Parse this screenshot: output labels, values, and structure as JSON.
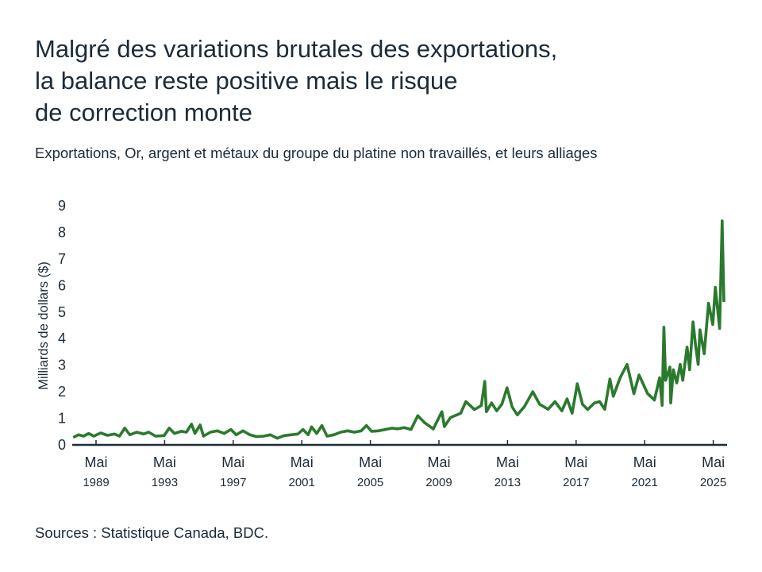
{
  "title_lines": [
    "Malgré des variations brutales des exportations,",
    "la balance reste positive mais le risque",
    "de correction monte"
  ],
  "subtitle": "Exportations, Or, argent et métaux du groupe du platine non travaillés, et leurs alliages",
  "source": "Sources : Statistique Canada, BDC.",
  "colors": {
    "line": "#2a7a2e",
    "text": "#1c2b39",
    "axis": "#1c2b39"
  },
  "chart_data": {
    "type": "line",
    "title": "Malgré des variations brutales des exportations, la balance reste positive mais le risque de correction monte",
    "ylabel": "Milliards de dollars ($)",
    "xlabel": "",
    "ylim": [
      0,
      9
    ],
    "xlim": [
      1987.9,
      2026.2
    ],
    "yticks": [
      "0",
      "1",
      "2",
      "3",
      "4",
      "5",
      "6",
      "7",
      "8",
      "9"
    ],
    "xticks": [
      {
        "year": 1989.33,
        "month": "Mai",
        "label": "1989"
      },
      {
        "year": 1993.33,
        "month": "Mai",
        "label": "1993"
      },
      {
        "year": 1997.33,
        "month": "Mai",
        "label": "1997"
      },
      {
        "year": 2001.33,
        "month": "Mai",
        "label": "2001"
      },
      {
        "year": 2005.33,
        "month": "Mai",
        "label": "2005"
      },
      {
        "year": 2009.33,
        "month": "Mai",
        "label": "2009"
      },
      {
        "year": 2013.33,
        "month": "Mai",
        "label": "2013"
      },
      {
        "year": 2017.33,
        "month": "Mai",
        "label": "2017"
      },
      {
        "year": 2021.33,
        "month": "Mai",
        "label": "2021"
      },
      {
        "year": 2025.33,
        "month": "Mai",
        "label": "2025"
      }
    ],
    "grid": false,
    "series": [
      {
        "name": "Exportations",
        "x": [
          1988.0,
          1988.3,
          1988.6,
          1988.9,
          1989.2,
          1989.6,
          1990.0,
          1990.4,
          1990.7,
          1991.0,
          1991.3,
          1991.7,
          1992.1,
          1992.4,
          1992.8,
          1993.3,
          1993.6,
          1993.9,
          1994.3,
          1994.6,
          1994.9,
          1995.1,
          1995.4,
          1995.6,
          1996.0,
          1996.4,
          1996.8,
          1997.2,
          1997.5,
          1997.9,
          1998.3,
          1998.7,
          1999.1,
          1999.5,
          1999.9,
          2000.3,
          2000.7,
          2001.1,
          2001.4,
          2001.7,
          2001.9,
          2002.2,
          2002.5,
          2002.8,
          2003.2,
          2003.6,
          2004.0,
          2004.4,
          2004.8,
          2005.1,
          2005.4,
          2005.8,
          2006.2,
          2006.6,
          2006.9,
          2007.3,
          2007.7,
          2008.1,
          2008.5,
          2009.0,
          2009.5,
          2009.65,
          2010.0,
          2010.6,
          2010.9,
          2011.4,
          2011.8,
          2012.0,
          2012.1,
          2012.4,
          2012.7,
          2013.0,
          2013.3,
          2013.6,
          2013.9,
          2014.3,
          2014.8,
          2015.2,
          2015.7,
          2016.1,
          2016.5,
          2016.8,
          2017.1,
          2017.4,
          2017.7,
          2018.0,
          2018.4,
          2018.7,
          2019.0,
          2019.3,
          2019.5,
          2019.9,
          2020.3,
          2020.7,
          2021.0,
          2021.5,
          2021.9,
          2022.2,
          2022.35,
          2022.45,
          2022.55,
          2022.8,
          2022.85,
          2023.0,
          2023.2,
          2023.4,
          2023.55,
          2023.8,
          2023.95,
          2024.15,
          2024.3,
          2024.45,
          2024.55,
          2024.8,
          2025.05,
          2025.3,
          2025.45,
          2025.7,
          2025.85,
          2025.95
        ],
        "values": [
          0.25,
          0.35,
          0.3,
          0.4,
          0.3,
          0.42,
          0.33,
          0.38,
          0.3,
          0.6,
          0.35,
          0.45,
          0.38,
          0.45,
          0.3,
          0.32,
          0.6,
          0.4,
          0.48,
          0.45,
          0.75,
          0.4,
          0.72,
          0.3,
          0.45,
          0.5,
          0.4,
          0.55,
          0.35,
          0.5,
          0.35,
          0.28,
          0.3,
          0.35,
          0.22,
          0.32,
          0.35,
          0.38,
          0.55,
          0.35,
          0.65,
          0.4,
          0.7,
          0.3,
          0.35,
          0.45,
          0.5,
          0.45,
          0.5,
          0.7,
          0.48,
          0.5,
          0.55,
          0.6,
          0.57,
          0.62,
          0.55,
          1.07,
          0.8,
          0.57,
          1.22,
          0.66,
          1.0,
          1.16,
          1.6,
          1.3,
          1.45,
          2.36,
          1.22,
          1.55,
          1.25,
          1.5,
          2.12,
          1.4,
          1.1,
          1.4,
          1.97,
          1.5,
          1.31,
          1.6,
          1.25,
          1.7,
          1.16,
          2.27,
          1.5,
          1.3,
          1.55,
          1.6,
          1.31,
          2.45,
          1.8,
          2.5,
          3.0,
          1.9,
          2.6,
          1.9,
          1.66,
          2.5,
          1.46,
          4.4,
          2.4,
          2.9,
          1.55,
          2.8,
          2.3,
          3.0,
          2.4,
          3.65,
          2.8,
          4.6,
          3.7,
          3.0,
          4.3,
          3.4,
          5.3,
          4.5,
          5.9,
          4.35,
          8.4,
          5.35
        ]
      }
    ]
  }
}
